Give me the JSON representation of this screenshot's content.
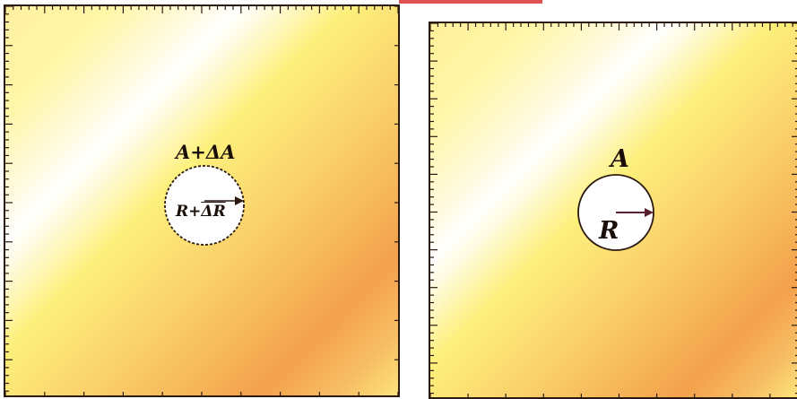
{
  "left_panel": {
    "area_label": "A+ΔA",
    "radius_label_prefix": "R+",
    "radius_label_vector": "ΔR"
  },
  "right_panel": {
    "area_label": "A",
    "radius_label": "R"
  },
  "colors": {
    "border": "#2a1a10",
    "gradient_light": "#ffffff",
    "gradient_yellow": "#fdf07c",
    "gradient_orange": "#f4a04c",
    "arrow": "#5a2030"
  }
}
